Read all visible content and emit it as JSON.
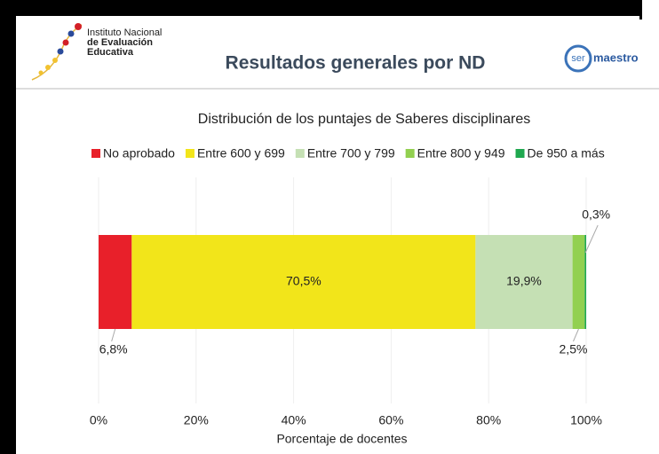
{
  "header": {
    "institution": [
      "Instituto Nacional",
      "de Evaluación",
      "Educativa"
    ],
    "title": "Resultados generales por ND",
    "logo_ser": "ser",
    "logo_maestro": "maestro"
  },
  "chart_data": {
    "type": "bar",
    "orientation": "horizontal",
    "stacked": true,
    "title": "Distribución de los puntajes de Saberes disciplinares",
    "x_label": "Porcentaje de docentes",
    "categories": [
      null
    ],
    "series": [
      {
        "name": "No aprobado",
        "color": "#e8202a",
        "values": [
          6.8
        ],
        "value_labels": [
          "6,8%"
        ]
      },
      {
        "name": "Entre 600 y 699",
        "color": "#f2e51a",
        "values": [
          70.5
        ],
        "value_labels": [
          "70,5%"
        ]
      },
      {
        "name": "Entre 700 y 799",
        "color": "#c5e0b4",
        "values": [
          19.9
        ],
        "value_labels": [
          "19,9%"
        ]
      },
      {
        "name": "Entre 800 y 949",
        "color": "#92d050",
        "values": [
          2.5
        ],
        "value_labels": [
          "2,5%"
        ]
      },
      {
        "name": "De 950 a más",
        "color": "#1fa84f",
        "values": [
          0.3
        ],
        "value_labels": [
          "0,3%"
        ]
      }
    ],
    "xlim": [
      0,
      100
    ],
    "xticks": [
      {
        "value": 0,
        "label": "0%"
      },
      {
        "value": 20,
        "label": "20%"
      },
      {
        "value": 40,
        "label": "40%"
      },
      {
        "value": 60,
        "label": "60%"
      },
      {
        "value": 80,
        "label": "80%"
      },
      {
        "value": 100,
        "label": "100%"
      }
    ],
    "grid": true,
    "legend": "top"
  }
}
